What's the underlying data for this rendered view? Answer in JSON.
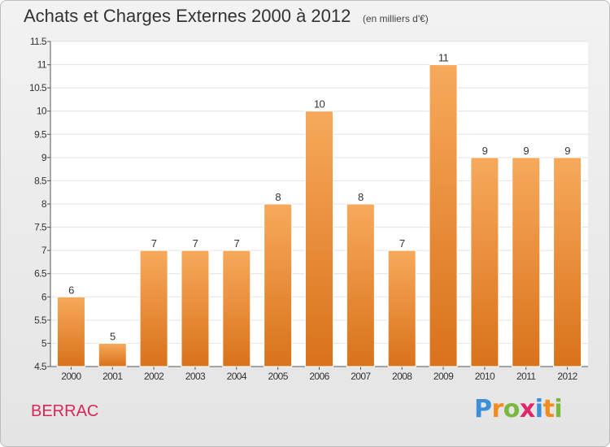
{
  "header": {
    "title": "Achats et Charges Externes 2000 à 2012",
    "unit": "(en milliers d'€)"
  },
  "footer": {
    "commune": "BERRAC",
    "logo_letters": [
      "P",
      "r",
      "o",
      "x",
      "i",
      "t",
      "i"
    ],
    "logo_colors": [
      "#3a8fd8",
      "#f28c1e",
      "#7ab83e",
      "#e2266a",
      "#3a8fd8",
      "#f28c1e",
      "#7ab83e"
    ]
  },
  "colors": {
    "bar_top": "#f7a95c",
    "bar_bottom": "#d9721a",
    "plot_bg": "#ffffff",
    "grid": "#e2e2e2"
  },
  "chart_data": {
    "type": "bar",
    "title": "Achats et Charges Externes 2000 à 2012",
    "subtitle": "(en milliers d'€)",
    "xlabel": "",
    "ylabel": "",
    "ylim": [
      4.5,
      11.5
    ],
    "yticks": [
      "4.5",
      "5",
      "5.5",
      "6",
      "6.5",
      "7",
      "7.5",
      "8",
      "8.5",
      "9",
      "9.5",
      "10",
      "10.5",
      "11",
      "11.5"
    ],
    "categories": [
      "2000",
      "2001",
      "2002",
      "2003",
      "2004",
      "2005",
      "2006",
      "2007",
      "2008",
      "2009",
      "2010",
      "2011",
      "2012"
    ],
    "values": [
      6,
      5,
      7,
      7,
      7,
      8,
      10,
      8,
      7,
      11,
      9,
      9,
      9
    ],
    "data_labels": [
      "6",
      "5",
      "7",
      "7",
      "7",
      "8",
      "10",
      "8",
      "7",
      "11",
      "9",
      "9",
      "9"
    ],
    "grid": true,
    "legend": "none"
  }
}
